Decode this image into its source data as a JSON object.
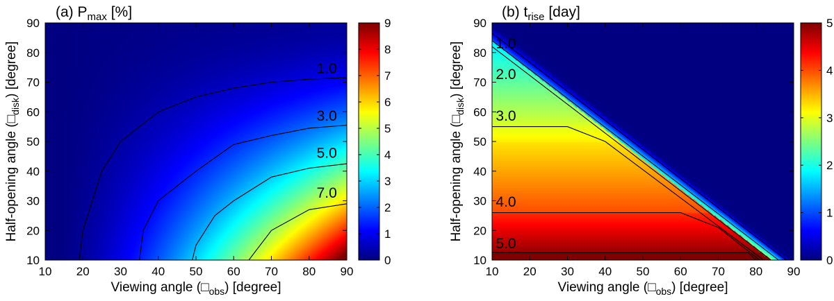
{
  "chart_data": [
    {
      "type": "heatmap",
      "title": "(a) P",
      "title_sub": "max",
      "title_unit": " [%]",
      "xlabel": "Viewing angle (",
      "xlabel_symbol": "□",
      "xlabel_sub": "obs",
      "xlabel_unit": ") [degree]",
      "ylabel": "Half-opening angle (",
      "ylabel_symbol": "□",
      "ylabel_sub": "disk",
      "ylabel_unit": ") [degree]",
      "xlim": [
        10,
        90
      ],
      "ylim": [
        10,
        90
      ],
      "xticks": [
        "10",
        "20",
        "30",
        "40",
        "50",
        "60",
        "70",
        "80",
        "90"
      ],
      "yticks": [
        "10",
        "20",
        "30",
        "40",
        "50",
        "60",
        "70",
        "80",
        "90"
      ],
      "colorbar": {
        "min": 0,
        "max": 9,
        "ticks": [
          "0",
          "1",
          "2",
          "3",
          "4",
          "5",
          "6",
          "7",
          "8",
          "9"
        ]
      },
      "contours": [
        {
          "level": 1.0,
          "label": "1.0",
          "points": [
            [
              19,
              10
            ],
            [
              20,
              20
            ],
            [
              25,
              40
            ],
            [
              30,
              50
            ],
            [
              40,
              60
            ],
            [
              50,
              65
            ],
            [
              60,
              68
            ],
            [
              70,
              70
            ],
            [
              80,
              71
            ],
            [
              90,
              71.5
            ]
          ]
        },
        {
          "level": 3.0,
          "label": "3.0",
          "points": [
            [
              35,
              10
            ],
            [
              36,
              20
            ],
            [
              40,
              30
            ],
            [
              50,
              40
            ],
            [
              60,
              49
            ],
            [
              70,
              52
            ],
            [
              80,
              54.5
            ],
            [
              90,
              55.5
            ]
          ]
        },
        {
          "level": 5.0,
          "label": "5.0",
          "points": [
            [
              49,
              10
            ],
            [
              50,
              15
            ],
            [
              55,
              25
            ],
            [
              60,
              30
            ],
            [
              70,
              38
            ],
            [
              80,
              41
            ],
            [
              90,
              42.5
            ]
          ]
        },
        {
          "level": 7.0,
          "label": "7.0",
          "points": [
            [
              64,
              10
            ],
            [
              70,
              20
            ],
            [
              80,
              27
            ],
            [
              90,
              29
            ]
          ]
        }
      ]
    },
    {
      "type": "heatmap",
      "title": "(b) t",
      "title_sub": "rise",
      "title_unit": " [day]",
      "xlabel": "Viewing angle (",
      "xlabel_symbol": "□",
      "xlabel_sub": "obs",
      "xlabel_unit": ") [degree]",
      "ylabel": "Half-opening angle (",
      "ylabel_symbol": "□",
      "ylabel_sub": "disk",
      "ylabel_unit": ") [degree]",
      "xlim": [
        10,
        90
      ],
      "ylim": [
        10,
        90
      ],
      "xticks": [
        "10",
        "20",
        "30",
        "40",
        "50",
        "60",
        "70",
        "80",
        "90"
      ],
      "yticks": [
        "10",
        "20",
        "30",
        "40",
        "50",
        "60",
        "70",
        "80",
        "90"
      ],
      "colorbar": {
        "min": 0,
        "max": 5,
        "ticks": [
          "0",
          "1",
          "2",
          "3",
          "4",
          "5"
        ]
      },
      "contours": [
        {
          "level": 1.0,
          "label": "1.0",
          "points": [
            [
              10,
              86.5
            ],
            [
              88,
              10
            ]
          ]
        },
        {
          "level": 2.0,
          "label": "2.0",
          "points": [
            [
              10,
              84
            ],
            [
              86,
              10
            ]
          ]
        },
        {
          "level": 2.5,
          "label": "",
          "points": [
            [
              10,
              82
            ],
            [
              84,
              10
            ]
          ]
        },
        {
          "level": 3.0,
          "label": "3.0",
          "points": [
            [
              10,
              55
            ],
            [
              30,
              55
            ],
            [
              40,
              50
            ],
            [
              82,
              10
            ]
          ]
        },
        {
          "level": 4.0,
          "label": "4.0",
          "points": [
            [
              10,
              26
            ],
            [
              60,
              26
            ],
            [
              70,
              21
            ],
            [
              81,
              10
            ]
          ]
        },
        {
          "level": 5.0,
          "label": "5.0",
          "points": [
            [
              10,
              12.5
            ],
            [
              78,
              12.5
            ],
            [
              80,
              10
            ]
          ]
        }
      ]
    }
  ]
}
